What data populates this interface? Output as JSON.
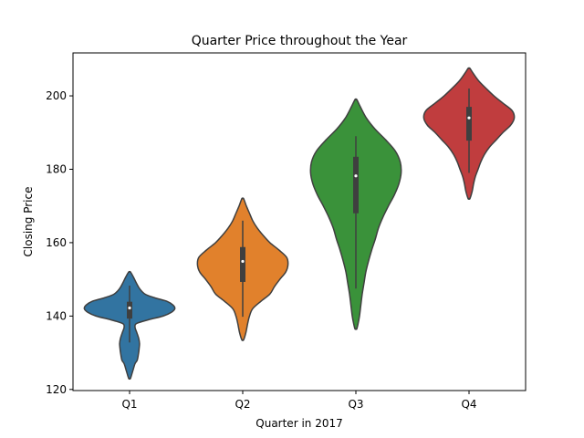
{
  "chart_data": {
    "type": "violin",
    "title": "Quarter Price throughout the Year",
    "xlabel": "Quarter in 2017",
    "ylabel": "Closing Price",
    "categories": [
      "Q1",
      "Q2",
      "Q3",
      "Q4"
    ],
    "colors": [
      "#3274a1",
      "#e1812c",
      "#3a923a",
      "#c03d3e"
    ],
    "ylim": [
      119.7,
      211.7
    ],
    "yticks": [
      120,
      140,
      160,
      180,
      200
    ],
    "grid": false,
    "legend": "none",
    "violins": [
      {
        "name": "Q1",
        "range": [
          123.0,
          152.0
        ],
        "density": [
          [
            123.0,
            0.02
          ],
          [
            125.0,
            0.07
          ],
          [
            127.0,
            0.12
          ],
          [
            128.0,
            0.17
          ],
          [
            130.0,
            0.2
          ],
          [
            131.0,
            0.21
          ],
          [
            132.5,
            0.22
          ],
          [
            134.0,
            0.2
          ],
          [
            135.5,
            0.16
          ],
          [
            137.0,
            0.12
          ],
          [
            138.0,
            0.16
          ],
          [
            139.0,
            0.42
          ],
          [
            140.0,
            0.74
          ],
          [
            141.0,
            0.92
          ],
          [
            142.0,
            1.0
          ],
          [
            143.0,
            0.96
          ],
          [
            144.0,
            0.83
          ],
          [
            145.0,
            0.55
          ],
          [
            146.0,
            0.34
          ],
          [
            147.5,
            0.22
          ],
          [
            149.0,
            0.15
          ],
          [
            150.5,
            0.09
          ],
          [
            152.0,
            0.02
          ]
        ],
        "q1": 139.3,
        "median": 142.2,
        "q3": 143.9,
        "whisker_low": 132.8,
        "whisker_high": 148.3
      },
      {
        "name": "Q2",
        "range": [
          133.5,
          172.0
        ],
        "density": [
          [
            133.5,
            0.02
          ],
          [
            135.5,
            0.07
          ],
          [
            138.0,
            0.11
          ],
          [
            140.0,
            0.15
          ],
          [
            142.0,
            0.22
          ],
          [
            144.0,
            0.4
          ],
          [
            146.0,
            0.6
          ],
          [
            148.0,
            0.7
          ],
          [
            150.0,
            0.82
          ],
          [
            152.0,
            0.95
          ],
          [
            154.0,
            1.0
          ],
          [
            156.0,
            0.97
          ],
          [
            158.0,
            0.8
          ],
          [
            160.0,
            0.6
          ],
          [
            162.0,
            0.45
          ],
          [
            164.0,
            0.32
          ],
          [
            166.0,
            0.22
          ],
          [
            168.0,
            0.15
          ],
          [
            170.0,
            0.08
          ],
          [
            172.0,
            0.02
          ]
        ],
        "q1": 149.3,
        "median": 154.9,
        "q3": 158.8,
        "whisker_low": 139.8,
        "whisker_high": 166.0
      },
      {
        "name": "Q3",
        "range": [
          136.5,
          199.0
        ],
        "density": [
          [
            136.5,
            0.02
          ],
          [
            138.0,
            0.05
          ],
          [
            140.0,
            0.08
          ],
          [
            143.0,
            0.11
          ],
          [
            146.0,
            0.14
          ],
          [
            149.0,
            0.18
          ],
          [
            152.0,
            0.22
          ],
          [
            155.0,
            0.28
          ],
          [
            158.0,
            0.35
          ],
          [
            161.0,
            0.43
          ],
          [
            164.0,
            0.5
          ],
          [
            167.0,
            0.6
          ],
          [
            170.0,
            0.72
          ],
          [
            173.0,
            0.85
          ],
          [
            176.0,
            0.95
          ],
          [
            179.0,
            1.0
          ],
          [
            182.0,
            0.98
          ],
          [
            185.0,
            0.87
          ],
          [
            188.0,
            0.66
          ],
          [
            191.0,
            0.42
          ],
          [
            194.0,
            0.23
          ],
          [
            197.0,
            0.1
          ],
          [
            199.0,
            0.02
          ]
        ],
        "q1": 168.0,
        "median": 178.2,
        "q3": 183.4,
        "whisker_low": 147.5,
        "whisker_high": 189.0
      },
      {
        "name": "Q4",
        "range": [
          172.0,
          207.5
        ],
        "density": [
          [
            172.0,
            0.02
          ],
          [
            174.0,
            0.07
          ],
          [
            176.0,
            0.1
          ],
          [
            178.0,
            0.14
          ],
          [
            180.0,
            0.2
          ],
          [
            182.0,
            0.26
          ],
          [
            184.0,
            0.34
          ],
          [
            186.0,
            0.45
          ],
          [
            188.0,
            0.6
          ],
          [
            190.0,
            0.75
          ],
          [
            192.0,
            0.92
          ],
          [
            194.0,
            1.0
          ],
          [
            196.0,
            0.95
          ],
          [
            198.0,
            0.75
          ],
          [
            200.0,
            0.55
          ],
          [
            202.0,
            0.38
          ],
          [
            204.0,
            0.22
          ],
          [
            206.0,
            0.1
          ],
          [
            207.5,
            0.02
          ]
        ],
        "q1": 187.8,
        "median": 194.0,
        "q3": 197.0,
        "whisker_low": 179.0,
        "whisker_high": 202.0
      }
    ]
  }
}
